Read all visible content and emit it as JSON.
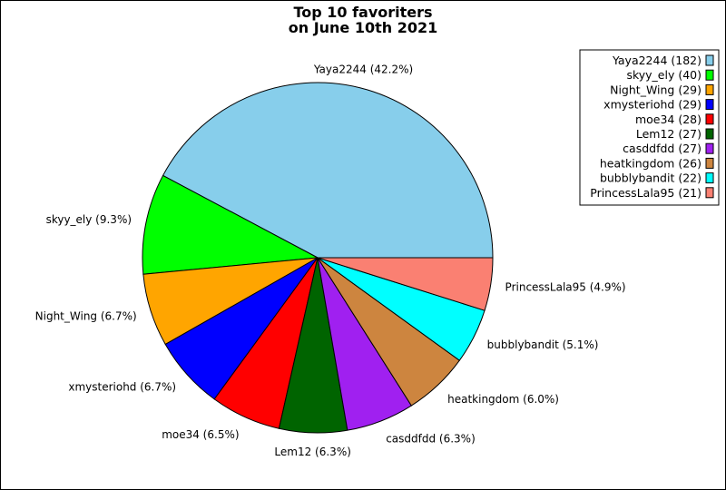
{
  "chart_data": {
    "type": "pie",
    "title_lines": [
      "Top 10 favoriters",
      "on June 10th 2021"
    ],
    "slices": [
      {
        "name": "Yaya2244",
        "value": 182,
        "percent_label": "Yaya2244 (42.2%)",
        "legend_label": "Yaya2244 (182)",
        "color": "#87CEEB"
      },
      {
        "name": "skyy_ely",
        "value": 40,
        "percent_label": "skyy_ely (9.3%)",
        "legend_label": "skyy_ely (40)",
        "color": "#00FF00"
      },
      {
        "name": "Night_Wing",
        "value": 29,
        "percent_label": "Night_Wing (6.7%)",
        "legend_label": "Night_Wing (29)",
        "color": "#FFA500"
      },
      {
        "name": "xmysteriohd",
        "value": 29,
        "percent_label": "xmysteriohd (6.7%)",
        "legend_label": "xmysteriohd (29)",
        "color": "#0000FF"
      },
      {
        "name": "moe34",
        "value": 28,
        "percent_label": "moe34 (6.5%)",
        "legend_label": "moe34 (28)",
        "color": "#FF0000"
      },
      {
        "name": "Lem12",
        "value": 27,
        "percent_label": "Lem12 (6.3%)",
        "legend_label": "Lem12 (27)",
        "color": "#006400"
      },
      {
        "name": "casddfdd",
        "value": 27,
        "percent_label": "casddfdd (6.3%)",
        "legend_label": "casddfdd (27)",
        "color": "#A020F0"
      },
      {
        "name": "heatkingdom",
        "value": 26,
        "percent_label": "heatkingdom (6.0%)",
        "legend_label": "heatkingdom (26)",
        "color": "#CD853F"
      },
      {
        "name": "bubblybandit",
        "value": 22,
        "percent_label": "bubblybandit (5.1%)",
        "legend_label": "bubblybandit (22)",
        "color": "#00FFFF"
      },
      {
        "name": "PrincessLala95",
        "value": 21,
        "percent_label": "PrincessLala95 (4.9%)",
        "legend_label": "PrincessLala95 (21)",
        "color": "#FA8072"
      }
    ],
    "start_angle_deg": 0,
    "direction": "counterclockwise",
    "legend_position": "top-right"
  }
}
